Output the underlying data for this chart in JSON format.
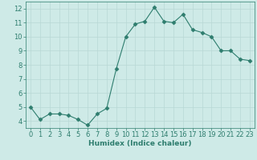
{
  "x": [
    0,
    1,
    2,
    3,
    4,
    5,
    6,
    7,
    8,
    9,
    10,
    11,
    12,
    13,
    14,
    15,
    16,
    17,
    18,
    19,
    20,
    21,
    22,
    23
  ],
  "y": [
    5.0,
    4.1,
    4.5,
    4.5,
    4.4,
    4.1,
    3.7,
    4.5,
    4.9,
    7.7,
    10.0,
    10.9,
    11.1,
    12.1,
    11.1,
    11.0,
    11.6,
    10.5,
    10.3,
    10.0,
    9.0,
    9.0,
    8.4,
    8.3
  ],
  "line_color": "#2e7d6e",
  "marker": "D",
  "marker_size": 2.5,
  "bg_color": "#ceeae7",
  "grid_color": "#b8d8d5",
  "xlabel": "Humidex (Indice chaleur)",
  "xlim": [
    -0.5,
    23.5
  ],
  "ylim": [
    3.5,
    12.5
  ],
  "yticks": [
    4,
    5,
    6,
    7,
    8,
    9,
    10,
    11,
    12
  ],
  "xticks": [
    0,
    1,
    2,
    3,
    4,
    5,
    6,
    7,
    8,
    9,
    10,
    11,
    12,
    13,
    14,
    15,
    16,
    17,
    18,
    19,
    20,
    21,
    22,
    23
  ],
  "tick_color": "#2e7d6e",
  "label_fontsize": 6.5,
  "tick_fontsize": 6
}
